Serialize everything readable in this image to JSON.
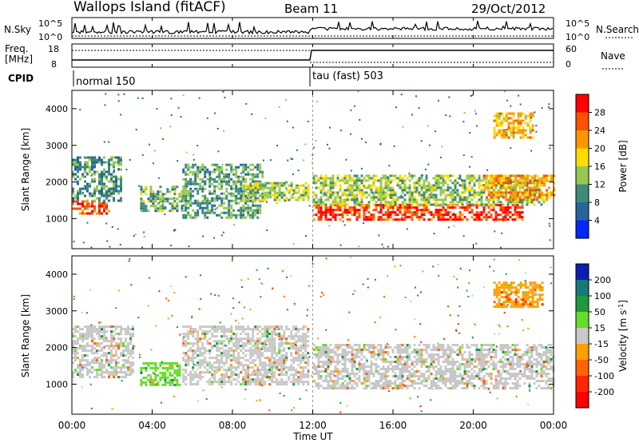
{
  "header": {
    "title": "Wallops Island (fitACF)",
    "beam": "Beam 11",
    "date": "29/Oct/2012"
  },
  "top_panel": {
    "nsky_label": "N.Sky",
    "nsearch_label": "N.Search",
    "nsky_ticks": [
      "10^5",
      "10^0"
    ],
    "freq_label": "Freq.",
    "freq_unit": "[MHz]",
    "freq_ticks": [
      "18",
      "8"
    ],
    "nave_label": "Nave",
    "nave_ticks": [
      "60",
      "0"
    ],
    "cpid_label": "CPID",
    "cpid_segments": [
      {
        "label": "normal 150",
        "start_hour": 0
      },
      {
        "label": "tau (fast) 503",
        "start_hour": 12
      }
    ]
  },
  "power_panel": {
    "ylabel": "Slant Range [km]",
    "colorbar_label": "Power [dB]",
    "colorbar_ticks": [
      "28",
      "24",
      "20",
      "16",
      "12",
      "8",
      "4"
    ],
    "colorbar_colors": [
      "#ff0000",
      "#ff5000",
      "#ff9600",
      "#ffdc00",
      "#96c850",
      "#3c8c78",
      "#2864a0",
      "#0028ff"
    ]
  },
  "velocity_panel": {
    "ylabel": "Slant Range [km]",
    "colorbar_label": "Velocity [m s^-1]",
    "colorbar_ticks": [
      "200",
      "100",
      "50",
      "15",
      "-15",
      "-50",
      "-100",
      "-200"
    ],
    "colorbar_colors": [
      "#0a1eb4",
      "#147a78",
      "#1e9a3c",
      "#64dc28",
      "#c8c8c8",
      "#ffa000",
      "#ff6400",
      "#ff2800",
      "#ff0000"
    ]
  },
  "x_axis": {
    "label": "Time UT",
    "ticks": [
      "00:00",
      "04:00",
      "08:00",
      "12:00",
      "16:00",
      "20:00",
      "00:00"
    ]
  },
  "chart_data": [
    {
      "type": "heatmap",
      "name": "power",
      "x_range_hours": [
        0,
        24
      ],
      "ylim": [
        180,
        4500
      ],
      "yticks": [
        1000,
        2000,
        3000,
        4000
      ],
      "ylabel": "Slant Range [km]",
      "zlabel": "Power [dB]",
      "zlim": [
        0,
        30
      ],
      "features": [
        {
          "t": [
            0.0,
            1.8
          ],
          "range": [
            1150,
            1500
          ],
          "level": 24
        },
        {
          "t": [
            0.0,
            2.5
          ],
          "range": [
            1500,
            2700
          ],
          "level": 8
        },
        {
          "t": [
            3.4,
            5.5
          ],
          "range": [
            1200,
            1900
          ],
          "level": 10
        },
        {
          "t": [
            5.5,
            9.5
          ],
          "range": [
            1000,
            2500
          ],
          "level": 9
        },
        {
          "t": [
            8.5,
            11.8
          ],
          "range": [
            1500,
            2000
          ],
          "level": 13
        },
        {
          "t": [
            12.0,
            22.5
          ],
          "range": [
            1000,
            1400
          ],
          "level": 26
        },
        {
          "t": [
            12.0,
            23.5
          ],
          "range": [
            1400,
            2200
          ],
          "level": 12
        },
        {
          "t": [
            20.5,
            24.0
          ],
          "range": [
            1500,
            2200
          ],
          "level": 20
        },
        {
          "t": [
            21.0,
            23.0
          ],
          "range": [
            3200,
            3900
          ],
          "level": 18
        }
      ]
    },
    {
      "type": "heatmap",
      "name": "velocity",
      "x_range_hours": [
        0,
        24
      ],
      "ylim": [
        180,
        4500
      ],
      "yticks": [
        1000,
        2000,
        3000,
        4000
      ],
      "ylabel": "Slant Range [km]",
      "zlabel": "Velocity [m s^-1]",
      "zlim": [
        -200,
        200
      ],
      "features": [
        {
          "t": [
            0.0,
            3.0
          ],
          "range": [
            1200,
            2600
          ],
          "level": 0
        },
        {
          "t": [
            3.4,
            5.4
          ],
          "range": [
            1000,
            1600
          ],
          "level": 40
        },
        {
          "t": [
            5.5,
            11.8
          ],
          "range": [
            1000,
            2600
          ],
          "level": 0
        },
        {
          "t": [
            12.0,
            24.0
          ],
          "range": [
            900,
            2100
          ],
          "level": 0
        },
        {
          "t": [
            21.0,
            23.5
          ],
          "range": [
            3100,
            3800
          ],
          "level": -40
        }
      ]
    }
  ]
}
